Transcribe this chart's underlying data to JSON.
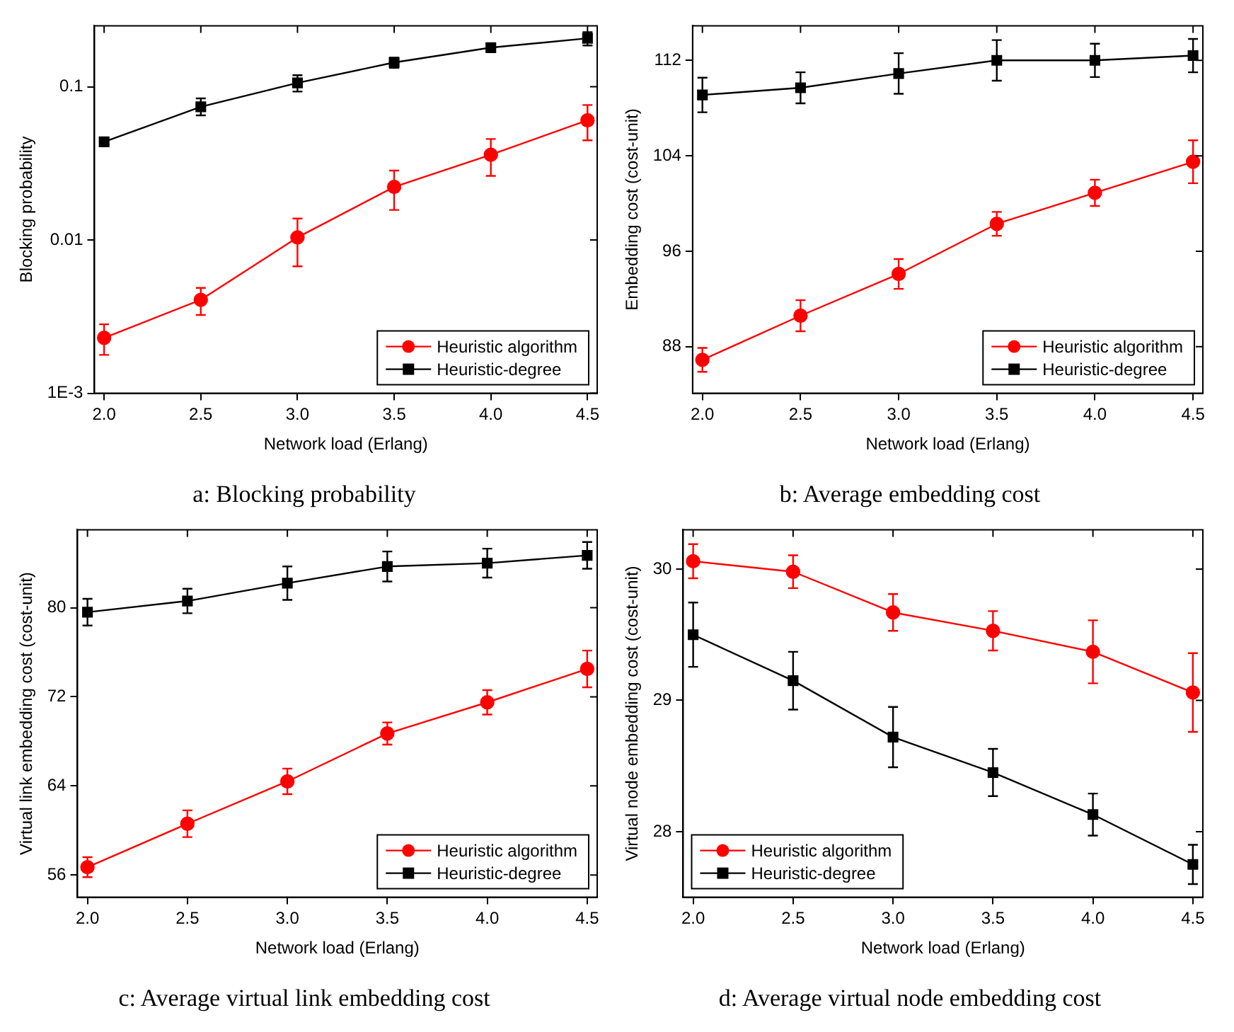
{
  "chart_data": [
    {
      "type": "line",
      "title": "a: Blocking probability",
      "xlabel": "Network load (Erlang)",
      "ylabel": "Blocking probability",
      "log": "y",
      "grid": false,
      "legend": "bottom right",
      "line_style": "solid",
      "x": [
        2.0,
        2.5,
        3.0,
        3.5,
        4.0,
        4.5
      ],
      "xlim": [
        1.95,
        4.55
      ],
      "xticks": [
        {
          "value": 2,
          "label": "2.0"
        },
        2.5,
        {
          "value": 3,
          "label": "3.0"
        },
        3.5,
        {
          "value": 4,
          "label": "4.0"
        },
        4.5
      ],
      "ylim": [
        0.001,
        0.25
      ],
      "yticks": [
        {
          "value": 0.001,
          "label": "1E-3"
        },
        0.01,
        0.1
      ],
      "series": [
        {
          "name": "Heuristic algorithm",
          "color": "#ff0000",
          "marker": "circle",
          "values": [
            0.0023,
            0.00407,
            0.0104,
            0.0222,
            0.036,
            0.0604
          ],
          "errors": [
            [
              0.00178,
              0.00282
            ],
            [
              0.00324,
              0.00487
            ],
            [
              0.00673,
              0.0138
            ],
            [
              0.0157,
              0.0284
            ],
            [
              0.0262,
              0.0456
            ],
            [
              0.0447,
              0.076
            ]
          ]
        },
        {
          "name": "Heuristic-degree",
          "color": "#000000",
          "marker": "square",
          "values": [
            0.0437,
            0.074,
            0.106,
            0.144,
            0.18,
            0.207
          ],
          "errors": [
            [
              0.042,
              0.046
            ],
            [
              0.065,
              0.084
            ],
            [
              0.093,
              0.119
            ],
            [
              0.133,
              0.155
            ],
            [
              0.168,
              0.191
            ],
            [
              0.186,
              0.227
            ]
          ]
        }
      ]
    },
    {
      "type": "line",
      "title": "b: Average embedding cost",
      "xlabel": "Network load (Erlang)",
      "ylabel": "Embedding cost (cost-unit)",
      "grid": false,
      "legend": "bottom right",
      "line_style": "solid",
      "x": [
        2.0,
        2.5,
        3.0,
        3.5,
        4.0,
        4.5
      ],
      "xlim": [
        1.95,
        4.55
      ],
      "xticks": [
        {
          "value": 2,
          "label": "2.0"
        },
        2.5,
        {
          "value": 3,
          "label": "3.0"
        },
        3.5,
        {
          "value": 4,
          "label": "4.0"
        },
        4.5
      ],
      "ylim": [
        84.1,
        114.9
      ],
      "yticks": [
        88,
        96,
        104,
        112
      ],
      "series": [
        {
          "name": "Heuristic algorithm",
          "color": "#ff0000",
          "marker": "circle",
          "values": [
            86.9,
            90.6,
            94.1,
            98.3,
            100.9,
            103.5
          ],
          "errors": [
            1.0,
            1.3,
            1.25,
            1.0,
            1.1,
            1.8
          ]
        },
        {
          "name": "Heuristic-degree",
          "color": "#000000",
          "marker": "square",
          "values": [
            109.1,
            109.7,
            110.9,
            112.0,
            112.0,
            112.4
          ],
          "errors": [
            1.45,
            1.3,
            1.7,
            1.7,
            1.4,
            1.4
          ]
        }
      ]
    },
    {
      "type": "line",
      "title": "c: Average virtual link embedding cost",
      "xlabel": "Network load (Erlang)",
      "ylabel": "Virtual link embedding cost (cost-unit)",
      "grid": false,
      "legend": "bottom right",
      "line_style": "solid",
      "x": [
        2.0,
        2.5,
        3.0,
        3.5,
        4.0,
        4.5
      ],
      "xlim": [
        1.95,
        4.55
      ],
      "xticks": [
        {
          "value": 2,
          "label": "2.0"
        },
        2.5,
        {
          "value": 3,
          "label": "3.0"
        },
        3.5,
        {
          "value": 4,
          "label": "4.0"
        },
        4.5
      ],
      "ylim": [
        54,
        87
      ],
      "yticks": [
        56,
        64,
        72,
        80
      ],
      "series": [
        {
          "name": "Heuristic algorithm",
          "color": "#ff0000",
          "marker": "circle",
          "values": [
            56.7,
            60.6,
            64.4,
            68.7,
            71.5,
            74.5
          ],
          "errors": [
            0.9,
            1.2,
            1.15,
            1.0,
            1.1,
            1.65
          ]
        },
        {
          "name": "Heuristic-degree",
          "color": "#000000",
          "marker": "square",
          "values": [
            79.6,
            80.6,
            82.2,
            83.7,
            84.0,
            84.7
          ],
          "errors": [
            1.2,
            1.1,
            1.5,
            1.35,
            1.3,
            1.2
          ]
        }
      ]
    },
    {
      "type": "line",
      "title": "d: Average virtual node embedding cost",
      "xlabel": "Network load (Erlang)",
      "ylabel": "Virtual node embedding cost (cost-unit)",
      "grid": false,
      "legend": "bottom left",
      "line_style": "solid",
      "x": [
        2.0,
        2.5,
        3.0,
        3.5,
        4.0,
        4.5
      ],
      "xlim": [
        1.95,
        4.55
      ],
      "xticks": [
        {
          "value": 2,
          "label": "2.0"
        },
        2.5,
        {
          "value": 3,
          "label": "3.0"
        },
        3.5,
        {
          "value": 4,
          "label": "4.0"
        },
        4.5
      ],
      "ylim": [
        27.5,
        30.3
      ],
      "yticks": [
        28,
        29,
        30
      ],
      "series": [
        {
          "name": "Heuristic algorithm",
          "color": "#ff0000",
          "marker": "circle",
          "values": [
            30.06,
            29.98,
            29.67,
            29.53,
            29.37,
            29.06
          ],
          "errors": [
            0.13,
            0.125,
            0.14,
            0.15,
            0.24,
            0.3
          ]
        },
        {
          "name": "Heuristic-degree",
          "color": "#000000",
          "marker": "square",
          "values": [
            29.5,
            29.15,
            28.72,
            28.45,
            28.13,
            27.75
          ],
          "errors": [
            0.245,
            0.22,
            0.23,
            0.18,
            0.16,
            0.15
          ]
        }
      ]
    }
  ]
}
